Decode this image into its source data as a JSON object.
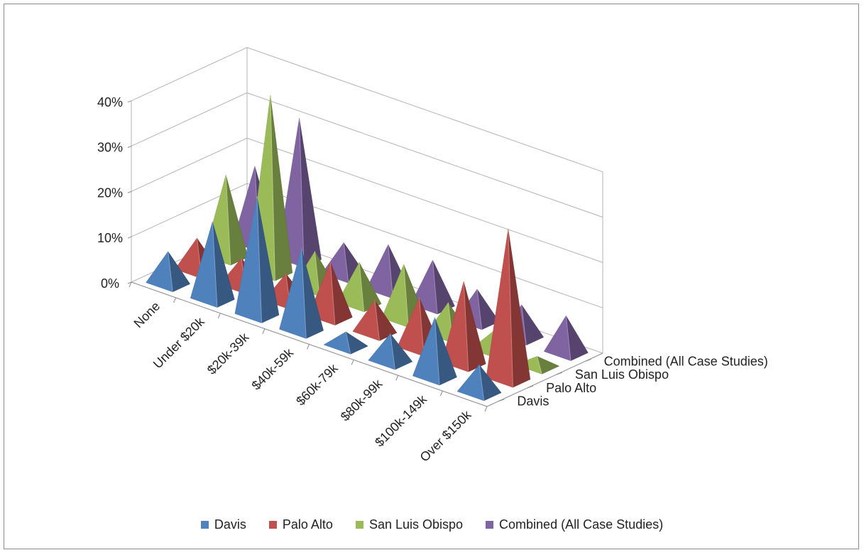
{
  "chart_data": {
    "type": "3d-pyramid-column",
    "categories": [
      "None",
      "Under $20k",
      "$20k-39k",
      "$40k-59k",
      "$60k-79k",
      "$80k-99k",
      "$100k-149k",
      "Over $150k"
    ],
    "series": [
      {
        "name": "Davis",
        "color": "#4f81bd",
        "values": [
          7,
          17,
          26,
          18,
          3,
          6,
          13,
          6
        ]
      },
      {
        "name": "Palo Alto",
        "color": "#c0504d",
        "values": [
          7,
          6,
          6,
          12,
          7,
          11,
          18,
          33
        ]
      },
      {
        "name": "San Luis Obispo",
        "color": "#9bbb59",
        "values": [
          18,
          39,
          8,
          9,
          12,
          7,
          4,
          2
        ]
      },
      {
        "name": "Combined (All Case Studies)",
        "color": "#8064a2",
        "values": [
          17,
          31,
          7,
          10,
          10,
          7,
          7,
          8
        ]
      }
    ],
    "yticks": [
      "0%",
      "10%",
      "20%",
      "30%",
      "40%"
    ],
    "ylim": [
      0,
      40
    ],
    "legend_position": "bottom",
    "grid": true
  }
}
